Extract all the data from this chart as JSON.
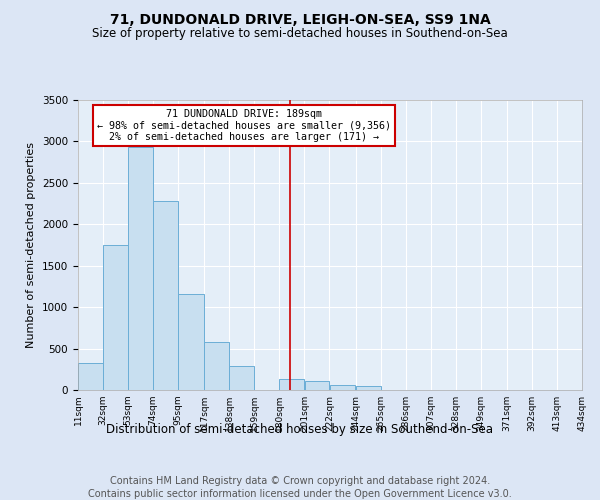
{
  "title": "71, DUNDONALD DRIVE, LEIGH-ON-SEA, SS9 1NA",
  "subtitle": "Size of property relative to semi-detached houses in Southend-on-Sea",
  "xlabel": "Distribution of semi-detached houses by size in Southend-on-Sea",
  "ylabel": "Number of semi-detached properties",
  "footer1": "Contains HM Land Registry data © Crown copyright and database right 2024.",
  "footer2": "Contains public sector information licensed under the Open Government Licence v3.0.",
  "annotation_line1": "71 DUNDONALD DRIVE: 189sqm",
  "annotation_line2": "← 98% of semi-detached houses are smaller (9,356)",
  "annotation_line3": "2% of semi-detached houses are larger (171) →",
  "property_size": 189,
  "bar_left_edges": [
    11,
    32,
    53,
    74,
    95,
    117,
    138,
    159,
    180,
    201,
    222,
    244,
    265,
    286,
    307,
    328,
    349,
    371,
    392,
    413
  ],
  "bar_heights": [
    320,
    1750,
    2930,
    2280,
    1160,
    580,
    290,
    0,
    130,
    110,
    60,
    50,
    0,
    0,
    0,
    0,
    0,
    0,
    0,
    0
  ],
  "tick_labels": [
    "11sqm",
    "32sqm",
    "53sqm",
    "74sqm",
    "95sqm",
    "117sqm",
    "138sqm",
    "159sqm",
    "180sqm",
    "201sqm",
    "222sqm",
    "244sqm",
    "265sqm",
    "286sqm",
    "307sqm",
    "328sqm",
    "349sqm",
    "371sqm",
    "392sqm",
    "413sqm",
    "434sqm"
  ],
  "bar_color": "#c8dff0",
  "bar_edge_color": "#6baed6",
  "vline_color": "#cc0000",
  "vline_x": 189,
  "ylim": [
    0,
    3500
  ],
  "yticks": [
    0,
    500,
    1000,
    1500,
    2000,
    2500,
    3000,
    3500
  ],
  "bg_color": "#dce6f5",
  "plot_bg_color": "#e4eef8",
  "grid_color": "#ffffff",
  "title_fontsize": 10,
  "subtitle_fontsize": 8.5,
  "xlabel_fontsize": 8.5,
  "ylabel_fontsize": 8,
  "annotation_box_color": "#ffffff",
  "annotation_box_edge": "#cc0000",
  "footer_fontsize": 7
}
